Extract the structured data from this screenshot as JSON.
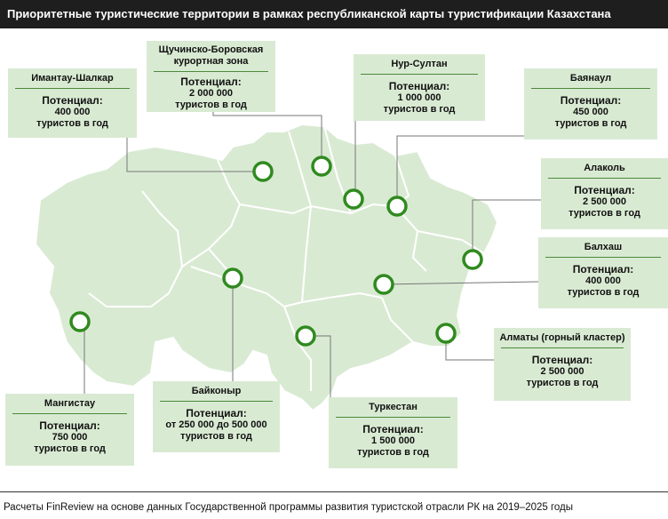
{
  "title": "Приоритетные туристические территории в рамках республиканской карты туристификации Казахстана",
  "potential_label": "Потенциал:",
  "tourists_unit": "туристов в год",
  "colors": {
    "header_bg": "#1e1e1e",
    "map_fill": "#d9ead3",
    "border": "#ffffff",
    "marker": "#2f8a1e",
    "callout_bg": "#d9ead3"
  },
  "territories": [
    {
      "id": "imantau",
      "name": "Имантау-Шалкар",
      "value": "400 000"
    },
    {
      "id": "shchuchinsk",
      "name": "Щучинско-Боровская курортная зона",
      "value": "2 000 000"
    },
    {
      "id": "nursultan",
      "name": "Нур-Султан",
      "value": "1 000 000"
    },
    {
      "id": "bayanaul",
      "name": "Баянаул",
      "value": "450 000"
    },
    {
      "id": "alakol",
      "name": "Алаколь",
      "value": "2 500 000"
    },
    {
      "id": "balkhash",
      "name": "Балхаш",
      "value": "400 000"
    },
    {
      "id": "almaty",
      "name": "Алматы (горный кластер)",
      "value": "2 500 000"
    },
    {
      "id": "turkestan",
      "name": "Туркестан",
      "value": "1 500 000"
    },
    {
      "id": "baikonur",
      "name": "Байконыр",
      "value": "от 250 000 до 500 000"
    },
    {
      "id": "mangystau",
      "name": "Мангистау",
      "value": "750 000"
    }
  ],
  "footer": "Расчеты FinReview  на основе данных Государственной программы развития туристской  отрасли РК на 2019–2025 годы"
}
